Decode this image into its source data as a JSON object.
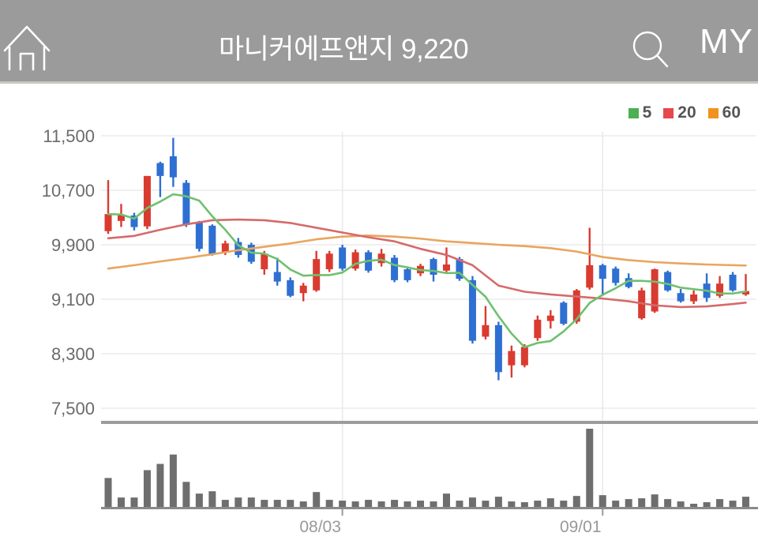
{
  "header": {
    "title": "마니커에프앤지 9,220",
    "my_label": "MY"
  },
  "legend": [
    {
      "label": "5",
      "color": "#4caf50"
    },
    {
      "label": "20",
      "color": "#e5484d"
    },
    {
      "label": "60",
      "color": "#ef9220"
    }
  ],
  "chart_data": {
    "type": "candlestick",
    "title": "마니커에프앤지",
    "current_price": "9,220",
    "y_ticks": [
      11500,
      10700,
      9900,
      9100,
      8300,
      7500
    ],
    "y_tick_labels": [
      "11,500",
      "10,700",
      "9,900",
      "9,100",
      "8,300",
      "7,500"
    ],
    "ylim": [
      7500,
      11500
    ],
    "x_tick_labels": [
      "08/03",
      "09/01"
    ],
    "x_tick_indices": [
      18,
      38
    ],
    "grid": true,
    "legend_position": "top-right",
    "colors": {
      "up": "#d93b30",
      "down": "#2e6fd2",
      "ma5": "#6fc06f",
      "ma20": "#d66a6a",
      "ma60": "#e9a55e",
      "volume": "#6e6e6e",
      "gridline": "#ececec",
      "separator": "#9c9c9c",
      "axis_baseline": "#8a8a8a",
      "y_label": "#6b6b6b",
      "x_label": "#999999",
      "header_bg": "#9b9b9b"
    },
    "candles_ohlc": [
      [
        10100,
        10850,
        10060,
        10350
      ],
      [
        10250,
        10500,
        10160,
        10340
      ],
      [
        10330,
        10370,
        10110,
        10160
      ],
      [
        10170,
        10910,
        10130,
        10910
      ],
      [
        11100,
        11120,
        10600,
        10910
      ],
      [
        11200,
        11470,
        10750,
        10890
      ],
      [
        10810,
        10850,
        10160,
        10190
      ],
      [
        10230,
        10250,
        9800,
        9840
      ],
      [
        10180,
        10200,
        9740,
        9760
      ],
      [
        9790,
        9960,
        9750,
        9920
      ],
      [
        9940,
        10000,
        9710,
        9750
      ],
      [
        9900,
        9930,
        9620,
        9650
      ],
      [
        9540,
        9810,
        9460,
        9770
      ],
      [
        9500,
        9710,
        9300,
        9360
      ],
      [
        9380,
        9420,
        9130,
        9150
      ],
      [
        9190,
        9340,
        9070,
        9300
      ],
      [
        9230,
        9810,
        9210,
        9690
      ],
      [
        9540,
        9810,
        9500,
        9770
      ],
      [
        9860,
        9900,
        9520,
        9550
      ],
      [
        9550,
        9830,
        9520,
        9790
      ],
      [
        9790,
        9820,
        9490,
        9520
      ],
      [
        9630,
        9840,
        9580,
        9770
      ],
      [
        9710,
        9750,
        9350,
        9380
      ],
      [
        9540,
        9580,
        9350,
        9380
      ],
      [
        9480,
        9620,
        9440,
        9590
      ],
      [
        9690,
        9710,
        9360,
        9460
      ],
      [
        9520,
        9860,
        9500,
        9610
      ],
      [
        9690,
        9720,
        9370,
        9400
      ],
      [
        9380,
        9440,
        8450,
        8490
      ],
      [
        8550,
        9000,
        8510,
        8720
      ],
      [
        8720,
        8770,
        7910,
        8030
      ],
      [
        8130,
        8420,
        7950,
        8340
      ],
      [
        8130,
        8440,
        8100,
        8400
      ],
      [
        8530,
        8860,
        8490,
        8800
      ],
      [
        8780,
        8940,
        8670,
        8860
      ],
      [
        9050,
        9070,
        8720,
        8740
      ],
      [
        8770,
        9250,
        8740,
        9230
      ],
      [
        9270,
        10150,
        9240,
        9600
      ],
      [
        9600,
        9620,
        9150,
        9400
      ],
      [
        9550,
        9580,
        9300,
        9340
      ],
      [
        9410,
        9480,
        9260,
        9280
      ],
      [
        8820,
        9270,
        8800,
        9230
      ],
      [
        8920,
        9550,
        8900,
        9540
      ],
      [
        9500,
        9520,
        9210,
        9230
      ],
      [
        9190,
        9250,
        9050,
        9070
      ],
      [
        9070,
        9230,
        9030,
        9170
      ],
      [
        9330,
        9480,
        9060,
        9120
      ],
      [
        9150,
        9440,
        9120,
        9330
      ],
      [
        9460,
        9500,
        9210,
        9230
      ],
      [
        9170,
        9470,
        9150,
        9220
      ]
    ],
    "volume_relative": [
      37,
      12,
      12,
      47,
      55,
      67,
      32,
      17,
      20,
      9,
      12,
      12,
      9,
      9,
      9,
      7,
      19,
      9,
      8,
      7,
      9,
      7,
      9,
      7,
      8,
      7,
      17,
      8,
      12,
      8,
      13,
      7,
      6,
      8,
      11,
      8,
      14,
      100,
      15,
      8,
      10,
      11,
      16,
      10,
      7,
      4,
      6,
      10,
      8,
      13
    ],
    "ma20_points": [
      [
        0,
        9995
      ],
      [
        2,
        10030
      ],
      [
        4,
        10120
      ],
      [
        6,
        10200
      ],
      [
        8,
        10260
      ],
      [
        10,
        10270
      ],
      [
        12,
        10260
      ],
      [
        14,
        10220
      ],
      [
        16,
        10150
      ],
      [
        18,
        10080
      ],
      [
        20,
        10010
      ],
      [
        22,
        9950
      ],
      [
        24,
        9840
      ],
      [
        26,
        9750
      ],
      [
        28,
        9600
      ],
      [
        30,
        9300
      ],
      [
        32,
        9210
      ],
      [
        34,
        9170
      ],
      [
        36,
        9140
      ],
      [
        38,
        9110
      ],
      [
        40,
        9070
      ],
      [
        42,
        9010
      ],
      [
        44,
        8985
      ],
      [
        46,
        8995
      ],
      [
        48,
        9030
      ],
      [
        49,
        9050
      ]
    ],
    "ma60_points": [
      [
        0,
        9550
      ],
      [
        2,
        9600
      ],
      [
        4,
        9655
      ],
      [
        6,
        9705
      ],
      [
        8,
        9760
      ],
      [
        10,
        9820
      ],
      [
        12,
        9870
      ],
      [
        14,
        9920
      ],
      [
        16,
        9980
      ],
      [
        18,
        10020
      ],
      [
        20,
        10035
      ],
      [
        22,
        10020
      ],
      [
        24,
        9990
      ],
      [
        26,
        9950
      ],
      [
        28,
        9925
      ],
      [
        30,
        9900
      ],
      [
        32,
        9880
      ],
      [
        34,
        9850
      ],
      [
        36,
        9800
      ],
      [
        38,
        9720
      ],
      [
        40,
        9675
      ],
      [
        42,
        9645
      ],
      [
        44,
        9625
      ],
      [
        46,
        9610
      ],
      [
        48,
        9600
      ],
      [
        49,
        9595
      ]
    ]
  }
}
